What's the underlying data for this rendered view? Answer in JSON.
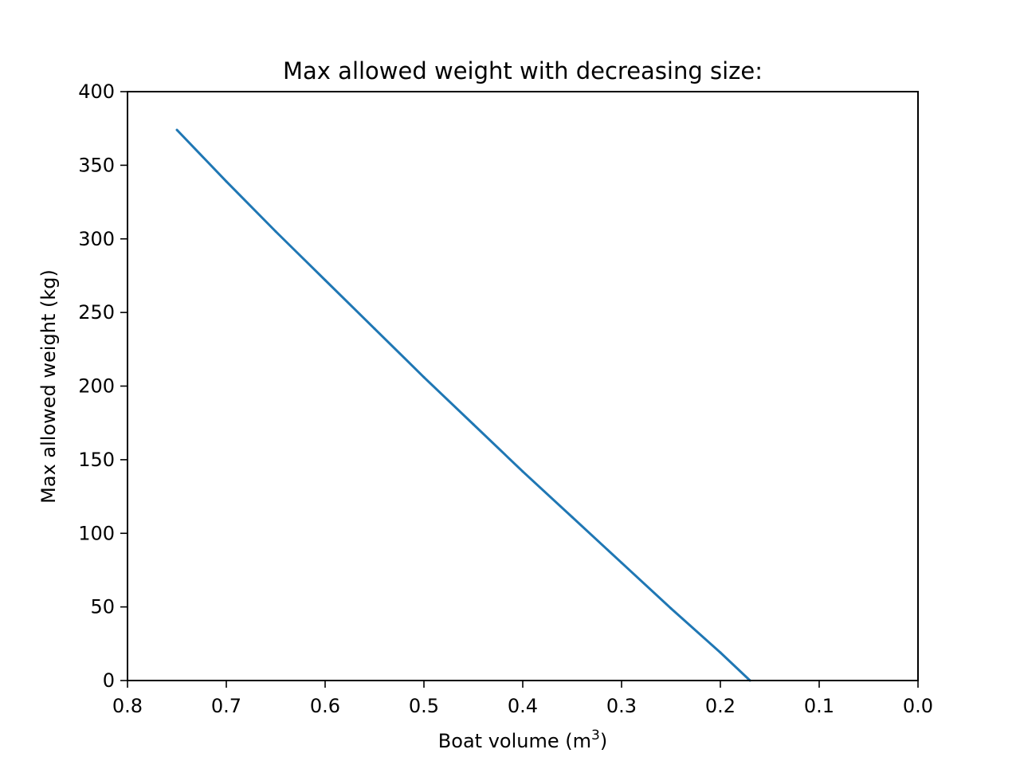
{
  "chart_data": {
    "type": "line",
    "title": "Max allowed weight with decreasing size:",
    "xlabel": "Boat volume (m3)",
    "xlabel_parts": {
      "base": "Boat volume (m",
      "sup": "3",
      "tail": ")"
    },
    "ylabel": "Max allowed weight (kg)",
    "xlim": [
      0.8,
      0.0
    ],
    "ylim": [
      0,
      400
    ],
    "x_inverted": true,
    "grid": false,
    "xticks": [
      0.8,
      0.7,
      0.6,
      0.5,
      0.4,
      0.3,
      0.2,
      0.1,
      0.0
    ],
    "xtick_labels": [
      "0.8",
      "0.7",
      "0.6",
      "0.5",
      "0.4",
      "0.3",
      "0.2",
      "0.1",
      "0.0"
    ],
    "yticks": [
      0,
      50,
      100,
      150,
      200,
      250,
      300,
      350,
      400
    ],
    "ytick_labels": [
      "0",
      "50",
      "100",
      "150",
      "200",
      "250",
      "300",
      "350",
      "400"
    ],
    "series": [
      {
        "color": "#1f77b4",
        "x": [
          0.75,
          0.7,
          0.65,
          0.6,
          0.55,
          0.5,
          0.45,
          0.4,
          0.35,
          0.3,
          0.25,
          0.2,
          0.17
        ],
        "y": [
          374,
          339,
          305,
          272,
          239,
          206,
          174,
          142,
          111,
          80,
          49,
          19,
          0
        ]
      }
    ]
  }
}
